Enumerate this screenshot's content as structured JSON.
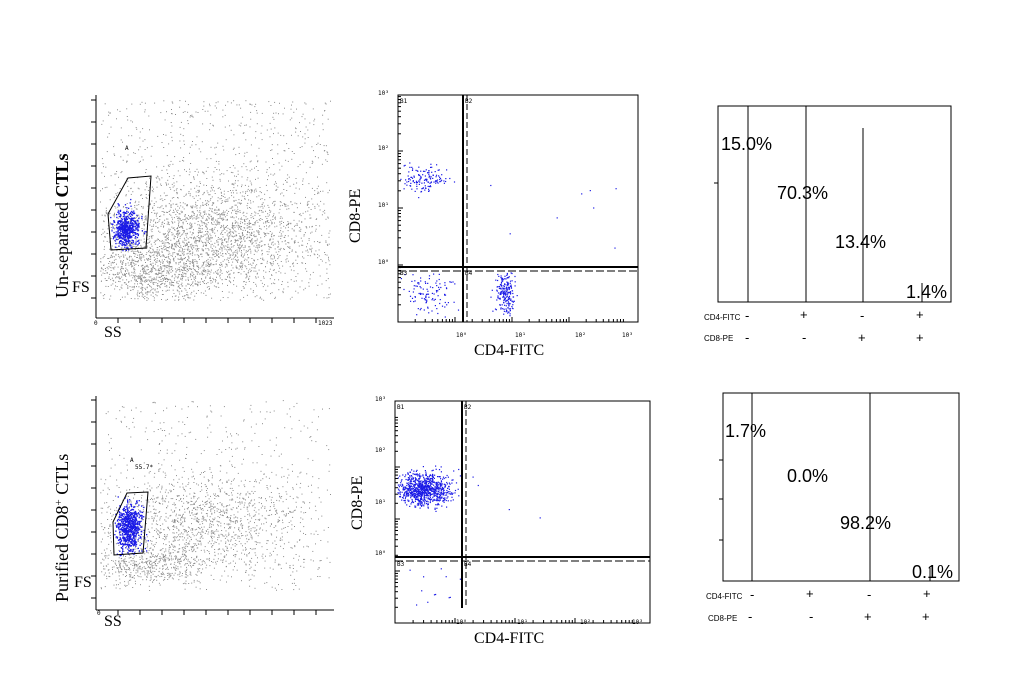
{
  "colors": {
    "gated": "#1a1ae6",
    "ungated": "#8c8c8c",
    "axis": "#000000"
  },
  "chart_data": [
    {
      "type": "scatter",
      "panel": "forward-side-scatter",
      "row_label_plain": "Un-separated ",
      "row_label_bold": "CTLs",
      "xlabel": "SS",
      "ylabel": "FS",
      "gate_label": "A",
      "gate_percent": "",
      "x_tick_labels": [
        "0",
        "1023"
      ],
      "xlim": [
        0,
        1023
      ],
      "ylim": [
        0,
        1023
      ]
    },
    {
      "type": "scatter",
      "panel": "quadrant-dot-plot",
      "xlabel": "CD4-FITC",
      "ylabel": "CD8-PE",
      "quadrants": [
        "B1",
        "B2",
        "B3",
        "B4"
      ],
      "x_tick_labels": [
        "10⁰",
        "10¹",
        "10²",
        "10³"
      ],
      "y_tick_labels": [
        "10⁰",
        "10¹",
        "10²",
        "10³"
      ],
      "x_scale": "log",
      "y_scale": "log",
      "xlim": [
        0.1,
        1000
      ],
      "ylim": [
        0.1,
        1000
      ]
    },
    {
      "type": "table",
      "panel": "quadrant-percentages",
      "row_names": [
        "CD4-FITC",
        "CD8-PE"
      ],
      "columns": [
        {
          "cd4": "-",
          "cd8": "-",
          "value": 15.0,
          "label": "15.0%"
        },
        {
          "cd4": "+",
          "cd8": "-",
          "value": 70.3,
          "label": "70.3%"
        },
        {
          "cd4": "-",
          "cd8": "+",
          "value": 13.4,
          "label": "13.4%"
        },
        {
          "cd4": "+",
          "cd8": "+",
          "value": 1.4,
          "label": "1.4%"
        }
      ]
    },
    {
      "type": "scatter",
      "panel": "forward-side-scatter",
      "row_label_plain": "Purified CD8",
      "row_label_sup": "+",
      "row_label_bold": " CTLs",
      "xlabel": "SS",
      "ylabel": "FS",
      "gate_label": "A",
      "gate_percent": "55.7*",
      "x_tick_labels": [
        "0"
      ],
      "xlim": [
        0,
        1023
      ],
      "ylim": [
        0,
        1023
      ]
    },
    {
      "type": "scatter",
      "panel": "quadrant-dot-plot",
      "xlabel": "CD4-FITC",
      "ylabel": "CD8-PE",
      "quadrants": [
        "B1",
        "B2",
        "B3",
        "B4"
      ],
      "x_tick_labels": [
        "10⁰",
        "10¹",
        "10²",
        "10³"
      ],
      "y_tick_labels": [
        "10⁰",
        "10¹",
        "10²",
        "10³"
      ],
      "x_scale": "log",
      "y_scale": "log",
      "xlim": [
        0.1,
        1000
      ],
      "ylim": [
        0.1,
        1000
      ]
    },
    {
      "type": "table",
      "panel": "quadrant-percentages",
      "row_names": [
        "CD4-FITC",
        "CD8-PE"
      ],
      "columns": [
        {
          "cd4": "-",
          "cd8": "-",
          "value": 1.7,
          "label": "1.7%"
        },
        {
          "cd4": "+",
          "cd8": "-",
          "value": 0.0,
          "label": "0.0%"
        },
        {
          "cd4": "-",
          "cd8": "+",
          "value": 98.2,
          "label": "98.2%"
        },
        {
          "cd4": "+",
          "cd8": "+",
          "value": 0.1,
          "label": "0.1%"
        }
      ]
    }
  ]
}
